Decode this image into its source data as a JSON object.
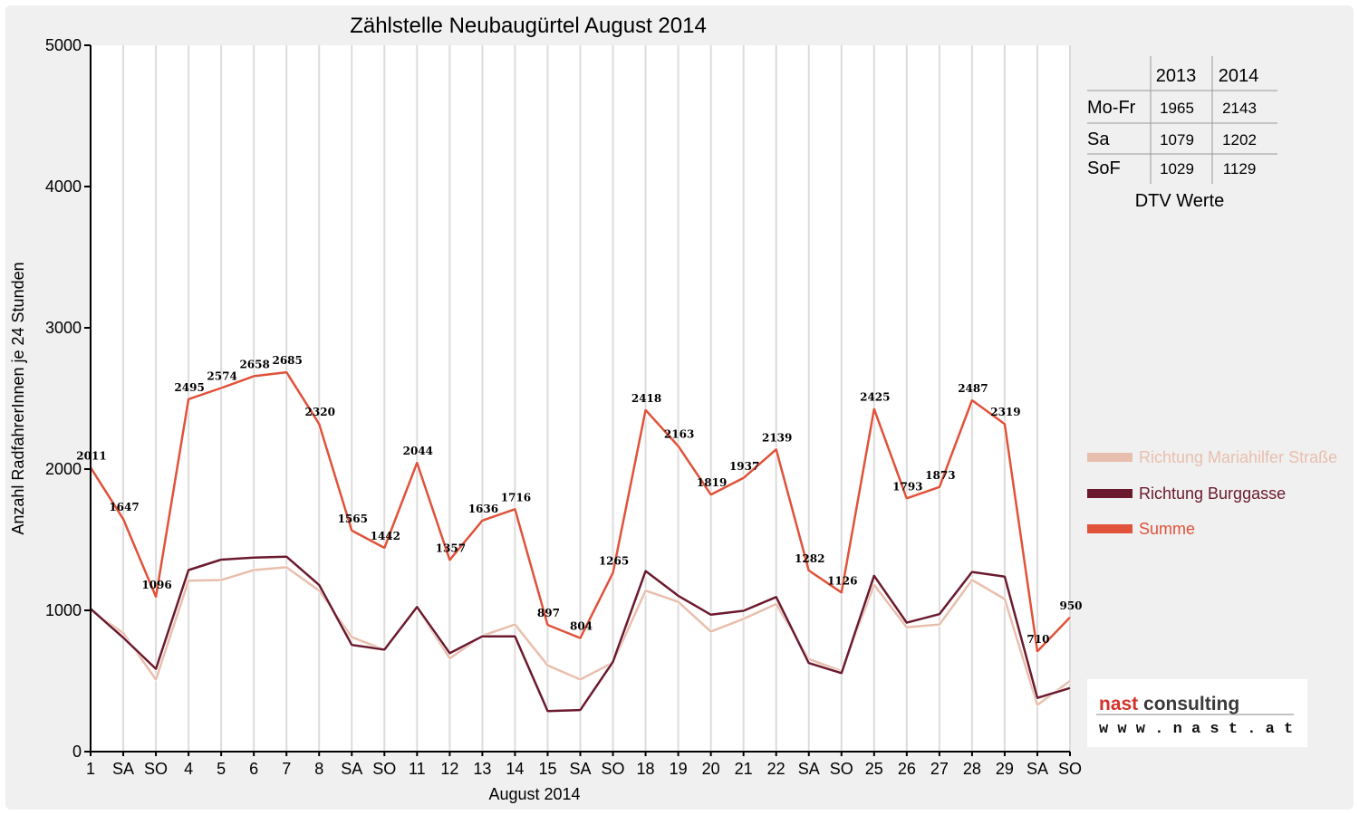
{
  "chart_data": {
    "type": "line",
    "title": "Zählstelle Neubaugürtel August 2014",
    "xlabel": "August 2014",
    "ylabel": "Anzahl RadfahrerInnen je 24 Stunden",
    "ylim": [
      0,
      5000
    ],
    "yticks": [
      "0",
      "1000",
      "2000",
      "3000",
      "4000",
      "5000"
    ],
    "grid": "vertical",
    "legend_position": "right",
    "categories": [
      "1",
      "SA",
      "SO",
      "4",
      "5",
      "6",
      "7",
      "8",
      "SA",
      "SO",
      "11",
      "12",
      "13",
      "14",
      "15",
      "SA",
      "SO",
      "18",
      "19",
      "20",
      "21",
      "22",
      "SA",
      "SO",
      "25",
      "26",
      "27",
      "28",
      "29",
      "SA",
      "SO"
    ],
    "red_categories": [
      2,
      9,
      14,
      16,
      23,
      30
    ],
    "series": [
      {
        "name": "Richtung Mariahilfer Straße",
        "color": "#e8bfae",
        "values": [
          1000,
          840,
          510,
          1210,
          1215,
          1285,
          1305,
          1140,
          810,
          720,
          1020,
          660,
          820,
          900,
          610,
          510,
          630,
          1140,
          1060,
          850,
          940,
          1045,
          655,
          570,
          1180,
          880,
          900,
          1215,
          1080,
          330,
          500
        ]
      },
      {
        "name": "Richtung Burggasse",
        "color": "#6b1a2e",
        "values": [
          1011,
          807,
          586,
          1285,
          1359,
          1373,
          1380,
          1180,
          755,
          722,
          1024,
          697,
          816,
          816,
          287,
          294,
          635,
          1278,
          1103,
          969,
          997,
          1094,
          627,
          556,
          1245,
          913,
          973,
          1272,
          1239,
          380,
          450
        ]
      },
      {
        "name": "Summe",
        "color": "#e0523a",
        "values": [
          2011,
          1647,
          1096,
          2495,
          2574,
          2658,
          2685,
          2320,
          1565,
          1442,
          2044,
          1357,
          1636,
          1716,
          897,
          804,
          1265,
          2418,
          2163,
          1819,
          1937,
          2139,
          1282,
          1126,
          2425,
          1793,
          1873,
          2487,
          2319,
          710,
          950
        ]
      }
    ],
    "data_labels": [
      "2011",
      "1647",
      "1096",
      "2495",
      "2574",
      "2658",
      "2685",
      "2320",
      "1565",
      "1442",
      "2044",
      "1357",
      "1636",
      "1716",
      "897",
      "804",
      "1265",
      "2418",
      "2163",
      "1819",
      "1937",
      "2139",
      "1282",
      "1126",
      "2425",
      "1793",
      "1873",
      "2487",
      "2319",
      "710",
      "950"
    ]
  },
  "dtv_table": {
    "headers": [
      "",
      "2013",
      "2014"
    ],
    "rows": [
      {
        "label": "Mo-Fr",
        "v2013": "1965",
        "v2014": "2143"
      },
      {
        "label": "Sa",
        "v2013": "1079",
        "v2014": "1202"
      },
      {
        "label": "SoF",
        "v2013": "1029",
        "v2014": "1129"
      }
    ],
    "caption": "DTV Werte"
  },
  "logo": {
    "main_left": "nast",
    "main_right": "consulting",
    "sub": "w w w . n a s t . a t",
    "colors": {
      "nast": "#d4332b",
      "consulting": "#3a3a3a"
    }
  }
}
